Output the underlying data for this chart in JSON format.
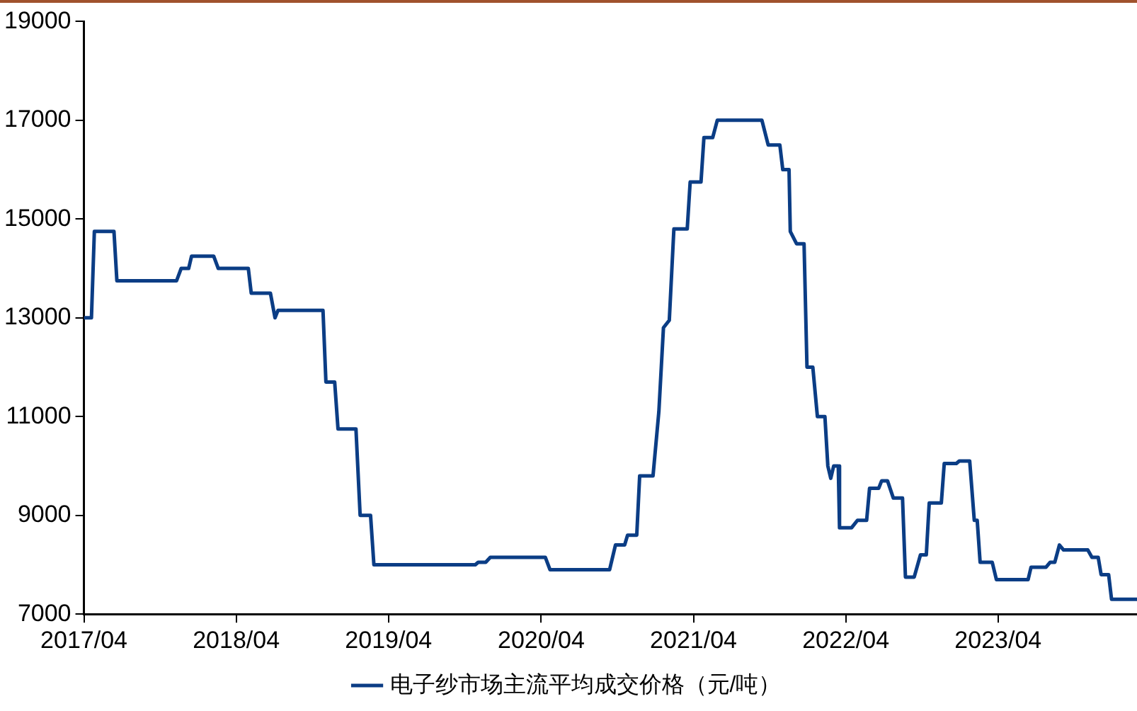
{
  "chart_data": {
    "type": "line",
    "x": [
      "2017-04-01",
      "2017-04-19",
      "2017-04-26",
      "2017-06-12",
      "2017-06-19",
      "2017-11-09",
      "2017-11-20",
      "2017-12-08",
      "2017-12-15",
      "2018-02-06",
      "2018-02-17",
      "2018-04-30",
      "2018-05-07",
      "2018-06-22",
      "2018-07-03",
      "2018-07-10",
      "2018-10-26",
      "2018-11-02",
      "2018-11-23",
      "2018-12-01",
      "2019-01-13",
      "2019-01-23",
      "2019-02-17",
      "2019-02-25",
      "2019-10-26",
      "2019-11-02",
      "2019-11-20",
      "2019-12-01",
      "2020-04-11",
      "2020-04-22",
      "2020-09-12",
      "2020-09-26",
      "2020-10-18",
      "2020-10-25",
      "2020-11-16",
      "2020-11-23",
      "2020-12-25",
      "2021-01-08",
      "2021-01-19",
      "2021-02-02",
      "2021-02-13",
      "2021-03-17",
      "2021-03-24",
      "2021-04-19",
      "2021-04-26",
      "2021-05-17",
      "2021-05-28",
      "2021-09-12",
      "2021-09-27",
      "2021-10-25",
      "2021-11-01",
      "2021-11-16",
      "2021-11-19",
      "2021-12-04",
      "2021-12-22",
      "2021-12-29",
      "2022-01-12",
      "2022-01-23",
      "2022-02-10",
      "2022-02-17",
      "2022-02-24",
      "2022-03-03",
      "2022-03-14",
      "2022-03-17",
      "2022-04-15",
      "2022-04-29",
      "2022-05-21",
      "2022-05-28",
      "2022-06-19",
      "2022-06-26",
      "2022-07-10",
      "2022-07-24",
      "2022-08-15",
      "2022-08-22",
      "2022-09-12",
      "2022-09-27",
      "2022-10-11",
      "2022-10-18",
      "2022-11-16",
      "2022-11-23",
      "2022-12-22",
      "2022-12-29",
      "2023-01-23",
      "2023-02-03",
      "2023-02-10",
      "2023-02-17",
      "2023-03-18",
      "2023-03-28",
      "2023-06-12",
      "2023-06-19",
      "2023-07-25",
      "2023-08-04",
      "2023-08-15",
      "2023-08-26",
      "2023-09-05",
      "2023-11-02",
      "2023-11-12",
      "2023-11-27",
      "2023-12-04",
      "2023-12-22",
      "2023-12-29",
      "2024-02-28"
    ],
    "series": [
      {
        "name": "电子纱市场主流平均成交价格（元/吨）",
        "color": "#0b3d85",
        "values": [
          13000,
          13000,
          14750,
          14750,
          13750,
          13750,
          14000,
          14000,
          14250,
          14250,
          14000,
          14000,
          13500,
          13500,
          13000,
          13150,
          13150,
          11700,
          11700,
          10750,
          10750,
          9000,
          9000,
          8000,
          8000,
          8050,
          8050,
          8150,
          8150,
          7900,
          7900,
          8400,
          8400,
          8600,
          8600,
          9800,
          9800,
          11100,
          12800,
          12950,
          14800,
          14800,
          15750,
          15750,
          16650,
          16650,
          17000,
          17000,
          16500,
          16500,
          16000,
          16000,
          14750,
          14500,
          14500,
          12000,
          12000,
          11000,
          11000,
          10000,
          9750,
          10000,
          10000,
          8750,
          8750,
          8900,
          8900,
          9550,
          9550,
          9700,
          9700,
          9350,
          9350,
          7750,
          7750,
          8200,
          8200,
          9250,
          9250,
          10050,
          10050,
          10100,
          10100,
          8900,
          8900,
          8050,
          8050,
          7700,
          7700,
          7950,
          7950,
          8050,
          8050,
          8400,
          8300,
          8300,
          8150,
          8150,
          7800,
          7800,
          7300,
          7300
        ]
      }
    ],
    "xlim": [
      "2017-04-01",
      "2024-02-28"
    ],
    "xticks": [
      {
        "value": "2017-04",
        "label": "2017/04"
      },
      {
        "value": "2018-04",
        "label": "2018/04"
      },
      {
        "value": "2019-04",
        "label": "2019/04"
      },
      {
        "value": "2020-04",
        "label": "2020/04"
      },
      {
        "value": "2021-04",
        "label": "2021/04"
      },
      {
        "value": "2022-04",
        "label": "2022/04"
      },
      {
        "value": "2023-04",
        "label": "2023/04"
      }
    ],
    "ylim": [
      7000,
      19000
    ],
    "yticks": [
      7000,
      9000,
      11000,
      13000,
      15000,
      17000,
      19000
    ],
    "grid": false,
    "legend": "bottom",
    "marker": "none",
    "line_style": "solid"
  }
}
